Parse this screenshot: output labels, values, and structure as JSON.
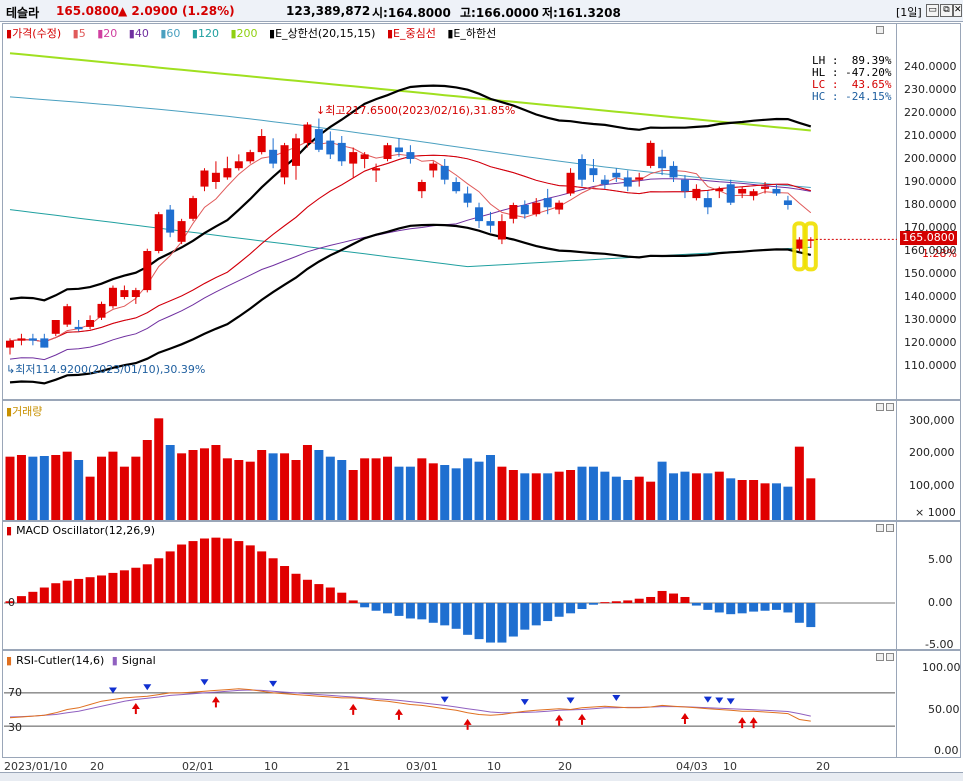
{
  "header": {
    "stock_name": "테슬라",
    "price": "165.0800",
    "change": "▲ 2.0900",
    "change_pct": "(1.28%)",
    "volume": "123,389,872",
    "open": "시:164.8000",
    "high": "고:166.0000",
    "low": "저:161.3208",
    "period": "[1일]",
    "buttons": [
      "▭",
      "⧉",
      "✕"
    ]
  },
  "price_panel": {
    "legend": [
      {
        "label": "가격(수정)",
        "color": "#d40000"
      },
      {
        "label": "5",
        "color": "#e05a5a"
      },
      {
        "label": "20",
        "color": "#d040a0"
      },
      {
        "label": "40",
        "color": "#7030a0"
      },
      {
        "label": "60",
        "color": "#4aa0c0"
      },
      {
        "label": "120",
        "color": "#20a0a0"
      },
      {
        "label": "200",
        "color": "#a0e020"
      },
      {
        "label": "E_상한선(20,15,15)",
        "color": "#000000"
      },
      {
        "label": "E_중심선",
        "color": "#d40000"
      },
      {
        "label": "E_하한선",
        "color": "#000000"
      }
    ],
    "stats": [
      {
        "label": "LH :  89.39%",
        "color": "#000000"
      },
      {
        "label": "HL : -47.20%",
        "color": "#000000"
      },
      {
        "label": "LC :  43.65%",
        "color": "#d40000"
      },
      {
        "label": "HC : -24.15%",
        "color": "#2060a0"
      }
    ],
    "high_note": "최고217.6500(2023/02/16),31.85%",
    "low_note": "최저114.9200(2023/01/10),30.39%",
    "last_price_tag": "165.0800",
    "last_change_tag": "1.28%",
    "y_ticks": [
      "240.0000",
      "230.0000",
      "220.0000",
      "210.0000",
      "200.0000",
      "190.0000",
      "180.0000",
      "170.0000",
      "160.0000",
      "150.0000",
      "140.0000",
      "130.0000",
      "120.0000",
      "110.0000"
    ]
  },
  "volume_panel": {
    "legend": "거래량",
    "y_ticks": [
      "300,000",
      "200,000",
      "100,000",
      "× 1000"
    ]
  },
  "macd_panel": {
    "legend": "MACD Oscillator(12,26,9)",
    "zero_label": "0",
    "y_ticks": [
      "5.00",
      "0.00",
      "-5.00"
    ]
  },
  "rsi_panel": {
    "legend1": "RSI-Cutler(14,6)",
    "legend2": "Signal",
    "level_high": "70",
    "level_low": "30",
    "y_ticks": [
      "100.00",
      "50.00",
      "0.00"
    ]
  },
  "x_axis": [
    "2023/01/10",
    "20",
    "02/01",
    "10",
    "21",
    "03/01",
    "10",
    "20",
    "04/03",
    "10",
    "20"
  ],
  "chart_data": {
    "type": "candlestick",
    "y_range": [
      105,
      248
    ],
    "candles": [
      {
        "o": 118,
        "h": 122,
        "l": 115,
        "c": 121
      },
      {
        "o": 121,
        "h": 124,
        "l": 119,
        "c": 122
      },
      {
        "o": 122,
        "h": 124,
        "l": 119,
        "c": 121
      },
      {
        "o": 122,
        "h": 124,
        "l": 118,
        "c": 118
      },
      {
        "o": 124,
        "h": 130,
        "l": 123,
        "c": 130
      },
      {
        "o": 128,
        "h": 137,
        "l": 127,
        "c": 136
      },
      {
        "o": 127,
        "h": 130,
        "l": 125,
        "c": 126
      },
      {
        "o": 127,
        "h": 132,
        "l": 126,
        "c": 130
      },
      {
        "o": 131,
        "h": 138,
        "l": 130,
        "c": 137
      },
      {
        "o": 136,
        "h": 145,
        "l": 135,
        "c": 144
      },
      {
        "o": 140,
        "h": 145,
        "l": 139,
        "c": 143
      },
      {
        "o": 140,
        "h": 144,
        "l": 137,
        "c": 143
      },
      {
        "o": 143,
        "h": 161,
        "l": 142,
        "c": 160
      },
      {
        "o": 160,
        "h": 177,
        "l": 159,
        "c": 176
      },
      {
        "o": 178,
        "h": 180,
        "l": 166,
        "c": 168
      },
      {
        "o": 164,
        "h": 174,
        "l": 163,
        "c": 173
      },
      {
        "o": 174,
        "h": 184,
        "l": 173,
        "c": 183
      },
      {
        "o": 188,
        "h": 196,
        "l": 186,
        "c": 195
      },
      {
        "o": 190,
        "h": 199,
        "l": 187,
        "c": 194
      },
      {
        "o": 192,
        "h": 201,
        "l": 191,
        "c": 196
      },
      {
        "o": 196,
        "h": 202,
        "l": 195,
        "c": 199
      },
      {
        "o": 199,
        "h": 204,
        "l": 198,
        "c": 203
      },
      {
        "o": 203,
        "h": 213,
        "l": 202,
        "c": 210
      },
      {
        "o": 204,
        "h": 209,
        "l": 196,
        "c": 198
      },
      {
        "o": 192,
        "h": 207,
        "l": 189,
        "c": 206
      },
      {
        "o": 197,
        "h": 211,
        "l": 191,
        "c": 209
      },
      {
        "o": 207,
        "h": 216,
        "l": 205,
        "c": 215
      },
      {
        "o": 213,
        "h": 217.6,
        "l": 203,
        "c": 204
      },
      {
        "o": 208,
        "h": 212,
        "l": 200,
        "c": 202
      },
      {
        "o": 207,
        "h": 210,
        "l": 197,
        "c": 199
      },
      {
        "o": 198,
        "h": 205,
        "l": 192,
        "c": 203
      },
      {
        "o": 200,
        "h": 203,
        "l": 196,
        "c": 202
      },
      {
        "o": 195,
        "h": 198,
        "l": 190,
        "c": 196
      },
      {
        "o": 200,
        "h": 207,
        "l": 199,
        "c": 206
      },
      {
        "o": 205,
        "h": 209,
        "l": 201,
        "c": 203
      },
      {
        "o": 203,
        "h": 206,
        "l": 198,
        "c": 200
      },
      {
        "o": 186,
        "h": 191,
        "l": 183,
        "c": 190
      },
      {
        "o": 195,
        "h": 199,
        "l": 192,
        "c": 198
      },
      {
        "o": 197,
        "h": 200,
        "l": 189,
        "c": 191
      },
      {
        "o": 190,
        "h": 192,
        "l": 185,
        "c": 186
      },
      {
        "o": 185,
        "h": 188,
        "l": 179,
        "c": 181
      },
      {
        "o": 179,
        "h": 181,
        "l": 170,
        "c": 173
      },
      {
        "o": 173,
        "h": 177,
        "l": 168,
        "c": 171
      },
      {
        "o": 165,
        "h": 176,
        "l": 163,
        "c": 173
      },
      {
        "o": 174,
        "h": 181,
        "l": 172,
        "c": 180
      },
      {
        "o": 180,
        "h": 182,
        "l": 174,
        "c": 176
      },
      {
        "o": 176,
        "h": 183,
        "l": 175,
        "c": 181
      },
      {
        "o": 183,
        "h": 187,
        "l": 176,
        "c": 179
      },
      {
        "o": 178,
        "h": 182,
        "l": 176,
        "c": 181
      },
      {
        "o": 185,
        "h": 196,
        "l": 184,
        "c": 194
      },
      {
        "o": 200,
        "h": 202,
        "l": 188,
        "c": 191
      },
      {
        "o": 196,
        "h": 200,
        "l": 190,
        "c": 193
      },
      {
        "o": 191,
        "h": 193,
        "l": 187,
        "c": 189
      },
      {
        "o": 194,
        "h": 196,
        "l": 190,
        "c": 192
      },
      {
        "o": 192,
        "h": 195,
        "l": 186,
        "c": 188
      },
      {
        "o": 191,
        "h": 194,
        "l": 188,
        "c": 192
      },
      {
        "o": 197,
        "h": 208,
        "l": 196,
        "c": 207
      },
      {
        "o": 201,
        "h": 204,
        "l": 193,
        "c": 196
      },
      {
        "o": 197,
        "h": 199,
        "l": 190,
        "c": 192
      },
      {
        "o": 191,
        "h": 193,
        "l": 183,
        "c": 186
      },
      {
        "o": 183,
        "h": 189,
        "l": 182,
        "c": 187
      },
      {
        "o": 183,
        "h": 186,
        "l": 176,
        "c": 179
      },
      {
        "o": 186,
        "h": 188,
        "l": 183,
        "c": 187
      },
      {
        "o": 189,
        "h": 191,
        "l": 180,
        "c": 181
      },
      {
        "o": 185,
        "h": 188,
        "l": 183,
        "c": 187
      },
      {
        "o": 184,
        "h": 187,
        "l": 182,
        "c": 186
      },
      {
        "o": 187,
        "h": 190,
        "l": 185,
        "c": 188
      },
      {
        "o": 187,
        "h": 189,
        "l": 184,
        "c": 185
      },
      {
        "o": 182,
        "h": 184,
        "l": 178,
        "c": 180
      },
      {
        "o": 161,
        "h": 166,
        "l": 160,
        "c": 165
      },
      {
        "o": 164.8,
        "h": 166,
        "l": 161.3,
        "c": 165.08
      }
    ],
    "volume_k": [
      190,
      195,
      190,
      192,
      195,
      205,
      180,
      130,
      190,
      205,
      160,
      190,
      240,
      305,
      225,
      200,
      210,
      215,
      225,
      185,
      180,
      175,
      210,
      200,
      200,
      180,
      225,
      210,
      190,
      180,
      150,
      185,
      185,
      190,
      160,
      160,
      185,
      170,
      165,
      155,
      185,
      175,
      195,
      160,
      150,
      140,
      140,
      140,
      145,
      150,
      160,
      160,
      145,
      130,
      120,
      130,
      115,
      175,
      140,
      145,
      140,
      140,
      145,
      125,
      120,
      120,
      110,
      110,
      100,
      220,
      125
    ],
    "macd": [
      0.2,
      0.8,
      1.3,
      1.8,
      2.3,
      2.6,
      2.8,
      3.0,
      3.2,
      3.5,
      3.8,
      4.1,
      4.5,
      5.2,
      6.0,
      6.8,
      7.2,
      7.5,
      7.6,
      7.5,
      7.2,
      6.7,
      6.0,
      5.2,
      4.3,
      3.4,
      2.7,
      2.2,
      1.8,
      1.2,
      0.3,
      -0.5,
      -0.9,
      -1.2,
      -1.5,
      -1.8,
      -1.9,
      -2.3,
      -2.6,
      -3.0,
      -3.7,
      -4.2,
      -4.6,
      -4.6,
      -3.9,
      -3.1,
      -2.6,
      -2.1,
      -1.6,
      -1.2,
      -0.7,
      -0.2,
      0.1,
      0.2,
      0.3,
      0.5,
      0.7,
      1.4,
      1.1,
      0.7,
      -0.3,
      -0.8,
      -1.1,
      -1.3,
      -1.2,
      -1.0,
      -0.9,
      -0.8,
      -1.1,
      -2.3,
      -2.8
    ],
    "rsi": [
      40,
      41,
      42,
      43,
      46,
      50,
      52,
      56,
      60,
      62,
      64,
      65,
      66,
      68,
      70,
      70,
      71,
      72,
      73,
      74,
      75,
      74,
      72,
      70,
      69,
      68,
      67,
      66,
      65,
      64,
      64,
      63,
      61,
      60,
      58,
      56,
      55,
      53,
      51,
      49,
      46,
      44,
      43,
      44,
      46,
      48,
      49,
      50,
      51,
      50,
      52,
      53,
      54,
      53,
      52,
      52,
      53,
      55,
      54,
      53,
      52,
      51,
      50,
      49,
      48,
      48,
      47,
      46,
      45,
      38,
      36
    ],
    "rsi_signal": [
      41,
      41.5,
      42,
      43,
      44,
      46,
      48,
      51,
      54,
      57,
      60,
      62,
      63.5,
      65,
      67,
      68,
      69,
      70,
      71,
      72,
      73,
      73.5,
      73,
      72,
      71,
      70,
      69,
      68,
      67,
      66,
      65,
      64,
      63,
      62,
      61,
      59.5,
      58,
      56.5,
      55,
      53,
      51,
      49,
      47,
      46,
      46,
      46.5,
      47,
      48,
      49,
      49.5,
      50,
      51,
      52,
      52,
      52.5,
      52.5,
      53,
      53.5,
      53.5,
      53.2,
      52.8,
      52.2,
      51.5,
      50.8,
      50.2,
      49.6,
      49,
      48.3,
      47.6,
      45,
      42
    ],
    "sell_arrows": [
      9,
      12,
      17,
      23,
      38,
      45,
      49,
      53,
      61,
      62,
      63
    ],
    "buy_arrows": [
      11,
      18,
      30,
      34,
      40,
      48,
      50,
      59,
      64,
      65
    ]
  }
}
